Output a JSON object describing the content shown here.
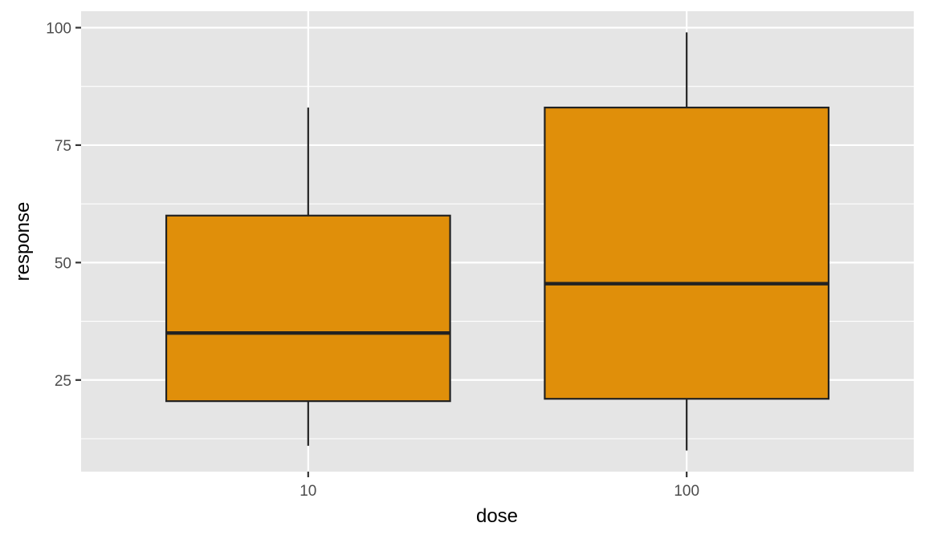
{
  "chart_data": {
    "type": "boxplot",
    "xlabel": "dose",
    "ylabel": "response",
    "categories": [
      "10",
      "100"
    ],
    "boxes": [
      {
        "category": "10",
        "min": 11,
        "q1": 20.5,
        "median": 35,
        "q3": 60,
        "max": 83
      },
      {
        "category": "100",
        "min": 10,
        "q1": 21,
        "median": 45.5,
        "q3": 83,
        "max": 99
      }
    ],
    "yticks": [
      25,
      50,
      75,
      100
    ],
    "ylim": [
      5.5,
      103.5
    ],
    "grid": true,
    "legend": "none",
    "colors": {
      "panel": "#e5e5e5",
      "grid": "#ffffff",
      "box_fill": "#e08f0a",
      "box_stroke": "#222222",
      "tick": "#333333",
      "tick_label": "#4d4d4d"
    }
  }
}
